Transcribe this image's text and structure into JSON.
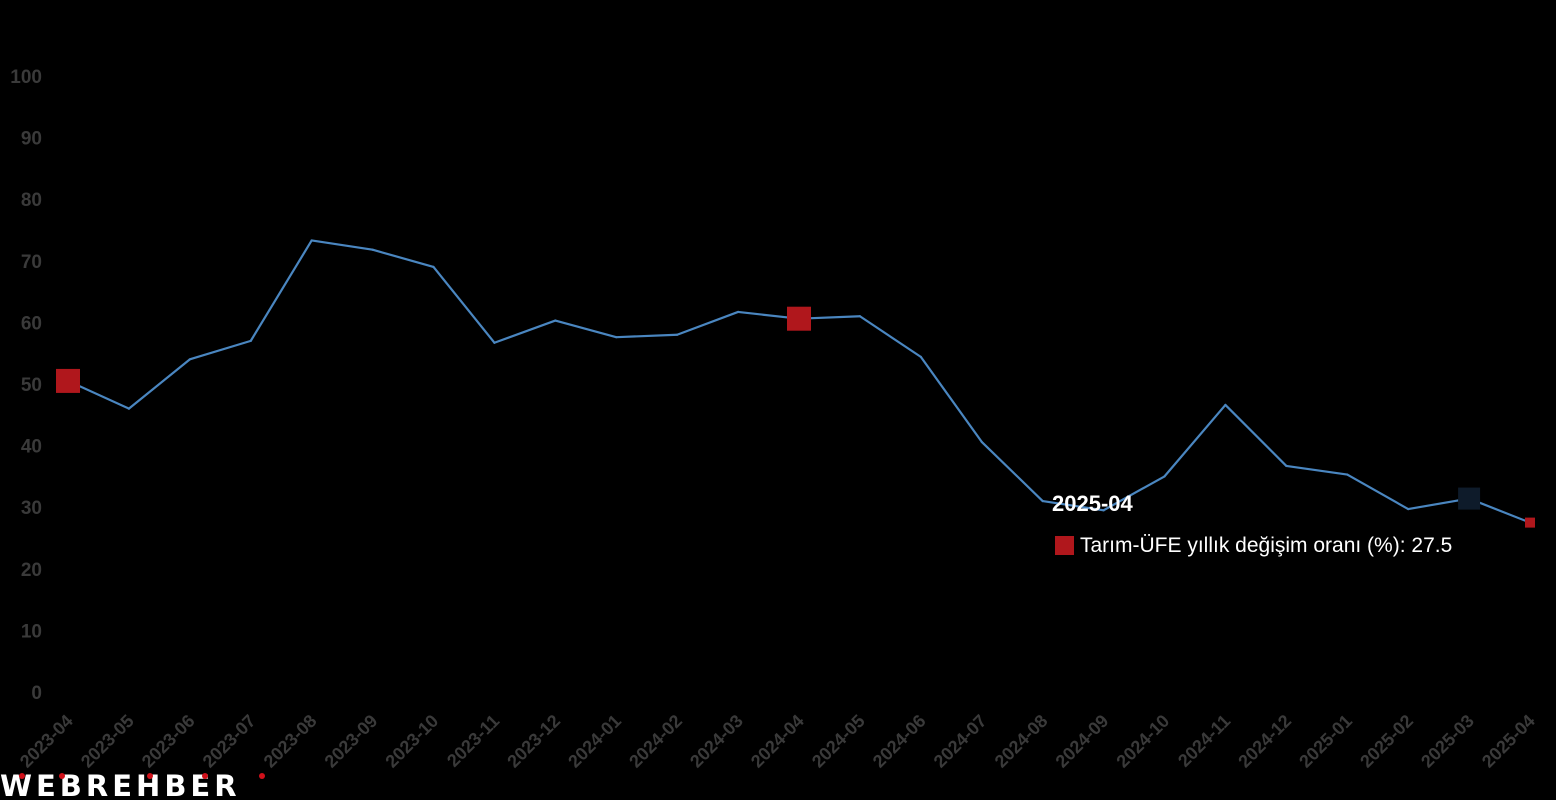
{
  "chart_data": {
    "type": "line",
    "categories": [
      "2023-04",
      "2023-05",
      "2023-06",
      "2023-07",
      "2023-08",
      "2023-09",
      "2023-10",
      "2023-11",
      "2023-12",
      "2024-01",
      "2024-02",
      "2024-03",
      "2024-04",
      "2024-05",
      "2024-06",
      "2024-07",
      "2024-08",
      "2024-09",
      "2024-10",
      "2024-11",
      "2024-12",
      "2025-01",
      "2025-02",
      "2025-03",
      "2025-04"
    ],
    "series": [
      {
        "name": "Tarım-ÜFE yıllık değişim oranı (%)",
        "values": [
          50.5,
          46.0,
          54.0,
          57.0,
          73.3,
          71.8,
          69.0,
          56.7,
          60.3,
          57.6,
          58.0,
          61.7,
          60.6,
          61.0,
          54.4,
          40.6,
          31.0,
          29.5,
          35.0,
          46.6,
          36.7,
          35.3,
          29.7,
          31.4,
          27.5
        ]
      }
    ],
    "ylim": [
      0,
      100
    ],
    "y_ticks": [
      "0",
      "10",
      "20",
      "30",
      "40",
      "50",
      "60",
      "70",
      "80",
      "90",
      "100"
    ],
    "grid": false,
    "line_color": "#4a86c0",
    "marker_color": "#b0171c",
    "highlight_marker_color": "#0e1b2a",
    "marker_indices": [
      0,
      12,
      24
    ],
    "highlight_index": 23
  },
  "tooltip": {
    "title": "2025-04",
    "label": "Tarım-ÜFE yıllık değişim oranı (%): 27.5",
    "swatch_color": "#b0171c"
  },
  "watermark": {
    "text": "WEBREHBER"
  }
}
